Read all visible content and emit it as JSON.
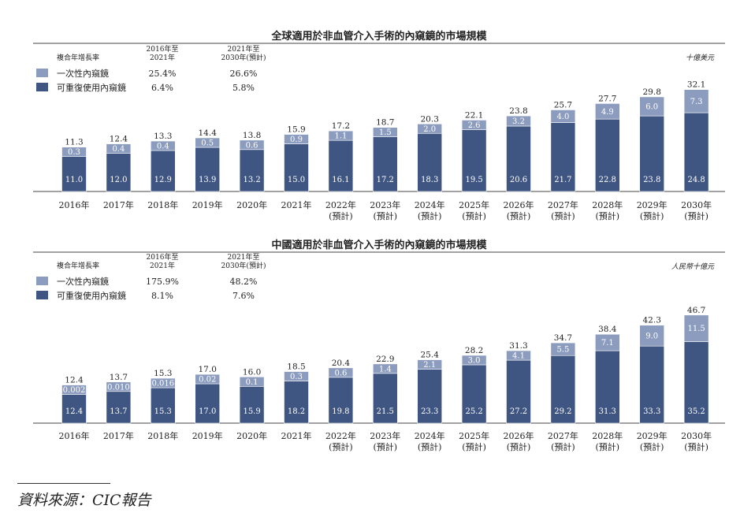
{
  "colors": {
    "disposable": "#8c9cbf",
    "reusable": "#3f5582",
    "axis": "#444444",
    "text": "#222222"
  },
  "source": "資料來源：CIC報告",
  "chart_data": [
    {
      "type": "bar",
      "stacked": true,
      "title": "全球適用於非血管介入手術的內窺鏡的市場規模",
      "unit": "十億美元",
      "categories": [
        [
          "2016年"
        ],
        [
          "2017年"
        ],
        [
          "2018年"
        ],
        [
          "2019年"
        ],
        [
          "2020年"
        ],
        [
          "2021年"
        ],
        [
          "2022年",
          "(預計)"
        ],
        [
          "2023年",
          "(預計)"
        ],
        [
          "2024年",
          "(預計)"
        ],
        [
          "2025年",
          "(預計)"
        ],
        [
          "2026年",
          "(預計)"
        ],
        [
          "2027年",
          "(預計)"
        ],
        [
          "2028年",
          "(預計)"
        ],
        [
          "2029年",
          "(預計)"
        ],
        [
          "2030年",
          "(預計)"
        ]
      ],
      "series": [
        {
          "name": "可重復使用內窺鏡",
          "color_key": "reusable",
          "values": [
            11.0,
            12.0,
            12.9,
            13.9,
            13.2,
            15.0,
            16.1,
            17.2,
            18.3,
            19.5,
            20.6,
            21.7,
            22.8,
            23.8,
            24.8
          ],
          "labels": [
            "11.0",
            "12.0",
            "12.9",
            "13.9",
            "13.2",
            "15.0",
            "16.1",
            "17.2",
            "18.3",
            "19.5",
            "20.6",
            "21.7",
            "22.8",
            "23.8",
            "24.8"
          ]
        },
        {
          "name": "一次性內窺鏡",
          "color_key": "disposable",
          "values": [
            0.3,
            0.4,
            0.4,
            0.5,
            0.6,
            0.9,
            1.1,
            1.5,
            2.0,
            2.6,
            3.2,
            4.0,
            4.9,
            6.0,
            7.3
          ],
          "labels": [
            "0.3",
            "0.4",
            "0.4",
            "0.5",
            "0.6",
            "0.9",
            "1.1",
            "1.5",
            "2.0",
            "2.6",
            "3.2",
            "4.0",
            "4.9",
            "6.0",
            "7.3"
          ]
        }
      ],
      "totals": [
        11.3,
        12.4,
        13.3,
        14.4,
        13.8,
        15.9,
        17.2,
        18.7,
        20.3,
        22.1,
        23.8,
        25.7,
        27.7,
        29.8,
        32.1
      ],
      "total_labels": [
        "11.3",
        "12.4",
        "13.3",
        "14.4",
        "13.8",
        "15.9",
        "17.2",
        "18.7",
        "20.3",
        "22.1",
        "23.8",
        "25.7",
        "27.7",
        "29.8",
        "32.1"
      ],
      "ylim": [
        0,
        34
      ],
      "cagr": {
        "header": "複合年增長率",
        "periods": [
          [
            "2016年至",
            "2021年"
          ],
          [
            "2021年至",
            "2030年(預計)"
          ]
        ],
        "rows": [
          {
            "name": "一次性內窺鏡",
            "color_key": "disposable",
            "values": [
              "25.4%",
              "26.6%"
            ]
          },
          {
            "name": "可重復使用內窺鏡",
            "color_key": "reusable",
            "values": [
              "6.4%",
              "5.8%"
            ]
          }
        ]
      }
    },
    {
      "type": "bar",
      "stacked": true,
      "title": "中國適用於非血管介入手術的內窺鏡的市場規模",
      "unit": "人民幣十億元",
      "categories": [
        [
          "2016年"
        ],
        [
          "2017年"
        ],
        [
          "2018年"
        ],
        [
          "2019年"
        ],
        [
          "2020年"
        ],
        [
          "2021年"
        ],
        [
          "2022年",
          "(預計)"
        ],
        [
          "2023年",
          "(預計)"
        ],
        [
          "2024年",
          "(預計)"
        ],
        [
          "2025年",
          "(預計)"
        ],
        [
          "2026年",
          "(預計)"
        ],
        [
          "2027年",
          "(預計)"
        ],
        [
          "2028年",
          "(預計)"
        ],
        [
          "2029年",
          "(預計)"
        ],
        [
          "2030年",
          "(預計)"
        ]
      ],
      "series": [
        {
          "name": "可重復使用內窺鏡",
          "color_key": "reusable",
          "values": [
            12.4,
            13.7,
            15.3,
            17.0,
            15.9,
            18.2,
            19.8,
            21.5,
            23.3,
            25.2,
            27.2,
            29.2,
            31.3,
            33.3,
            35.2
          ],
          "labels": [
            "12.4",
            "13.7",
            "15.3",
            "17.0",
            "15.9",
            "18.2",
            "19.8",
            "21.5",
            "23.3",
            "25.2",
            "27.2",
            "29.2",
            "31.3",
            "33.3",
            "35.2"
          ]
        },
        {
          "name": "一次性內窺鏡",
          "color_key": "disposable",
          "values": [
            0.002,
            0.01,
            0.016,
            0.02,
            0.1,
            0.3,
            0.6,
            1.4,
            2.1,
            3.0,
            4.1,
            5.5,
            7.1,
            9.0,
            11.5
          ],
          "labels": [
            "0.002",
            "0.010",
            "0.016",
            "0.02",
            "0.1",
            "0.3",
            "0.6",
            "1.4",
            "2.1",
            "3.0",
            "4.1",
            "5.5",
            "7.1",
            "9.0",
            "11.5"
          ]
        }
      ],
      "totals": [
        12.4,
        13.7,
        15.3,
        17.0,
        16.0,
        18.5,
        20.4,
        22.9,
        25.4,
        28.2,
        31.3,
        34.7,
        38.4,
        42.3,
        46.7
      ],
      "total_labels": [
        "12.4",
        "13.7",
        "15.3",
        "17.0",
        "16.0",
        "18.5",
        "20.4",
        "22.9",
        "25.4",
        "28.2",
        "31.3",
        "34.7",
        "38.4",
        "42.3",
        "46.7"
      ],
      "ylim": [
        0,
        48
      ],
      "cagr": {
        "header": "複合年增長率",
        "periods": [
          [
            "2016年至",
            "2021年"
          ],
          [
            "2021年至",
            "2030年(預計)"
          ]
        ],
        "rows": [
          {
            "name": "一次性內窺鏡",
            "color_key": "disposable",
            "values": [
              "175.9%",
              "48.2%"
            ]
          },
          {
            "name": "可重復使用內窺鏡",
            "color_key": "reusable",
            "values": [
              "8.1%",
              "7.6%"
            ]
          }
        ]
      }
    }
  ]
}
